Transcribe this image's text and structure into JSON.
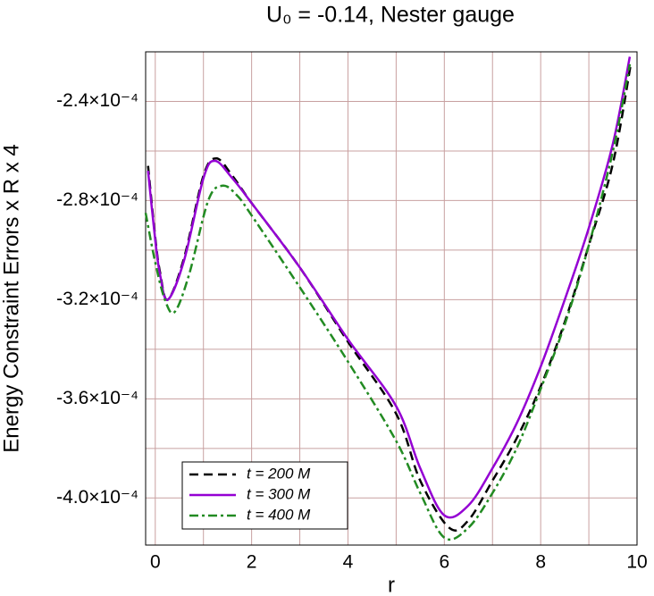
{
  "chart_data": {
    "type": "line",
    "title": "U₀ = -0.14, Nester gauge",
    "x_label": "r",
    "y_label": "Energy Constraint Errors x R x 4",
    "xlim": [
      -0.2,
      10
    ],
    "ylim": [
      -0.000419,
      -0.00022
    ],
    "xticks": [
      0,
      2,
      4,
      6,
      8,
      10
    ],
    "yticks": [
      {
        "value": -0.00024,
        "label": "-2.4×10⁻⁴"
      },
      {
        "value": -0.00028,
        "label": "-2.8×10⁻⁴"
      },
      {
        "value": -0.00032,
        "label": "-3.2×10⁻⁴"
      },
      {
        "value": -0.00036,
        "label": "-3.6×10⁻⁴"
      },
      {
        "value": -0.0004,
        "label": "-4.0×10⁻⁴"
      }
    ],
    "x_minor_grid": [
      1,
      3,
      5,
      7,
      9
    ],
    "y_minor_grid": [
      -0.00022,
      -0.00026,
      -0.0003,
      -0.00034,
      -0.00038
    ],
    "grid": true,
    "grid_color": "#c8a0a0",
    "legend": "lower left",
    "series": [
      {
        "name": "t = 200 M",
        "color": "#000000",
        "dash": "dashed",
        "x": [
          -0.15,
          0,
          0.1,
          0.26,
          0.6,
          1.0,
          1.27,
          1.6,
          2,
          3,
          4,
          5,
          5.5,
          6.1,
          6.5,
          7,
          7.5,
          8,
          8.5,
          9,
          9.5,
          9.87
        ],
        "values": [
          -0.000266,
          -0.000295,
          -0.000309,
          -0.00032,
          -0.000303,
          -0.00027,
          -0.000263,
          -0.00027,
          -0.000281,
          -0.000307,
          -0.000337,
          -0.000366,
          -0.000393,
          -0.000412,
          -0.000409,
          -0.000393,
          -0.000376,
          -0.000355,
          -0.000329,
          -0.000298,
          -0.000265,
          -0.000225
        ]
      },
      {
        "name": "t = 300 M",
        "color": "#9400d3",
        "dash": "solid",
        "x": [
          -0.15,
          0,
          0.1,
          0.26,
          0.6,
          1.0,
          1.24,
          1.6,
          2,
          3,
          4,
          5,
          5.5,
          6,
          6.5,
          7,
          7.5,
          8,
          8.5,
          9,
          9.5,
          9.85
        ],
        "values": [
          -0.000268,
          -0.000296,
          -0.00031,
          -0.00032,
          -0.000304,
          -0.000271,
          -0.000264,
          -0.000271,
          -0.000281,
          -0.000307,
          -0.000336,
          -0.000363,
          -0.000388,
          -0.000407,
          -0.000403,
          -0.000388,
          -0.00037,
          -0.000347,
          -0.00032,
          -0.000291,
          -0.000257,
          -0.000222
        ]
      },
      {
        "name": "t = 400 M",
        "color": "#228b22",
        "dash": "dashdot",
        "x": [
          -0.2,
          0,
          0.2,
          0.4,
          0.7,
          1.1,
          1.4,
          1.7,
          2,
          3,
          4,
          5,
          5.5,
          6,
          6.5,
          7,
          7.5,
          8,
          8.5,
          9,
          9.5,
          9.85
        ],
        "values": [
          -0.000285,
          -0.000305,
          -0.00032,
          -0.000325,
          -0.00031,
          -0.00028,
          -0.000274,
          -0.000278,
          -0.000286,
          -0.000315,
          -0.000345,
          -0.000377,
          -0.000398,
          -0.000416,
          -0.000412,
          -0.000398,
          -0.00038,
          -0.000356,
          -0.00033,
          -0.000298,
          -0.00026,
          -0.000225
        ]
      }
    ]
  }
}
